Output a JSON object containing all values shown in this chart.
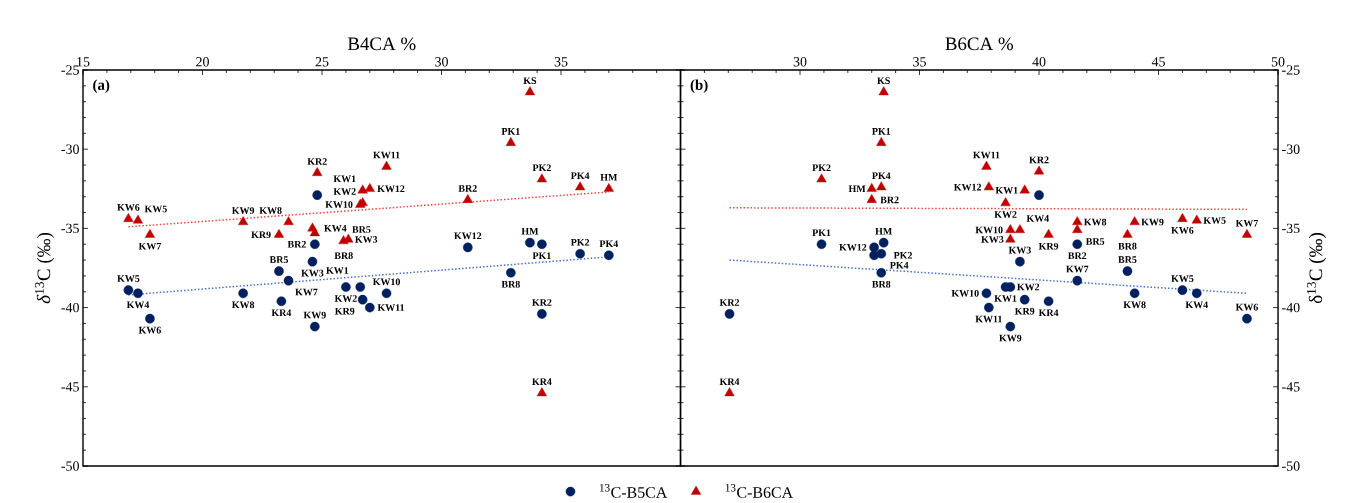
{
  "chart_data": [
    {
      "type": "scatter",
      "xlabel": "B4CA %",
      "ylabel": "*δ*$^{13}$C (‰)",
      "xlim": [
        15,
        40
      ],
      "ylim": [
        -50,
        -25
      ],
      "xticks": [
        15,
        20,
        25,
        30,
        35,
        {
          "value": 40,
          "label": null
        }
      ],
      "yticks": [
        -50,
        -45,
        -40,
        -35,
        -30,
        -25
      ],
      "legend": "bottom",
      "series": [
        {
          "name": "$^{13}$C-B5CA",
          "color": "#002060",
          "marker": "circle",
          "x": [
            16.9,
            17.3,
            17.8,
            21.7,
            23.2,
            23.6,
            23.3,
            24.8,
            24.7,
            24.6,
            24.7,
            26.0,
            26.6,
            26.7,
            27.0,
            27.7,
            31.1,
            32.9,
            33.7,
            34.2,
            35.8,
            37.0,
            34.2
          ],
          "values": [
            -38.9,
            -39.1,
            -40.7,
            -39.1,
            -37.7,
            -38.3,
            -39.6,
            -32.9,
            -36.0,
            -37.1,
            -41.2,
            -38.7,
            -38.7,
            -39.5,
            -40.0,
            -39.1,
            -36.2,
            -37.8,
            -35.9,
            -36.0,
            -36.6,
            -36.7,
            -40.4
          ]
        },
        {
          "name": "$^{13}$C-B6CA",
          "color": "#c00000",
          "marker": "triangle",
          "x": [
            16.9,
            17.3,
            17.8,
            21.7,
            23.2,
            23.6,
            24.6,
            24.7,
            24.8,
            26.1,
            25.9,
            26.6,
            26.7,
            26.7,
            27.0,
            27.7,
            31.1,
            33.7,
            32.9,
            34.2,
            35.8,
            37.0,
            34.2
          ],
          "values": [
            -34.4,
            -34.5,
            -35.4,
            -34.6,
            -35.4,
            -34.6,
            -35.0,
            -35.3,
            -31.5,
            -35.7,
            -35.8,
            -33.5,
            -33.4,
            -32.6,
            -32.5,
            -31.1,
            -33.2,
            -26.4,
            -29.6,
            -31.9,
            -32.4,
            -32.5,
            -45.4
          ]
        },
        {
          "type": "line",
          "color": "#4472c4",
          "line_style": "dotted",
          "marker": "none",
          "x": [
            16.9,
            37.0
          ],
          "values": [
            -39.2,
            -36.8
          ]
        },
        {
          "type": "line",
          "color": "#e8483c",
          "line_style": "dotted",
          "marker": "none",
          "x": [
            16.9,
            37.0
          ],
          "values": [
            -34.9,
            -32.7
          ]
        }
      ],
      "annotations": [
        "(a)",
        {
          "text": "KW5",
          "x": 16.9,
          "y": -38.9
        },
        {
          "text": "KW4",
          "x": 17.3,
          "y": -39.1
        },
        {
          "text": "KW6",
          "x": 17.8,
          "y": -40.7
        },
        {
          "text": "KW8",
          "x": 21.7,
          "y": -39.1
        },
        {
          "text": "BR5",
          "x": 23.2,
          "y": -37.7
        },
        {
          "text": "KW7",
          "x": 23.6,
          "y": -38.3
        },
        {
          "text": "KR4",
          "x": 23.3,
          "y": -39.6
        },
        {
          "text": "BR2",
          "x": 24.7,
          "y": -36.0
        },
        {
          "text": "KW3",
          "x": 24.6,
          "y": -37.1
        },
        {
          "text": "KW9",
          "x": 24.7,
          "y": -41.2
        },
        {
          "text": "KW2",
          "x": 26.0,
          "y": -38.7
        },
        {
          "text": "KW1",
          "x": 26.6,
          "y": -38.7
        },
        {
          "text": "KR9",
          "x": 26.7,
          "y": -39.5
        },
        {
          "text": "KW11",
          "x": 27.0,
          "y": -40.0
        },
        {
          "text": "KW10",
          "x": 27.7,
          "y": -39.1
        },
        {
          "text": "KW12",
          "x": 31.1,
          "y": -36.2
        },
        {
          "text": "BR8",
          "x": 32.9,
          "y": -37.8
        },
        {
          "text": "HM",
          "x": 33.7,
          "y": -35.9
        },
        {
          "text": "PK1",
          "x": 34.2,
          "y": -36.0
        },
        {
          "text": "PK2",
          "x": 35.8,
          "y": -36.6
        },
        {
          "text": "PK4",
          "x": 37.0,
          "y": -36.7
        },
        {
          "text": "KR2",
          "x": 34.2,
          "y": -40.4
        },
        {
          "text": "KW6",
          "x": 16.9,
          "y": -34.4
        },
        {
          "text": "KW5",
          "x": 17.3,
          "y": -34.5
        },
        {
          "text": "KW7",
          "x": 17.8,
          "y": -35.4
        },
        {
          "text": "KW9",
          "x": 21.7,
          "y": -34.6
        },
        {
          "text": "KR9",
          "x": 23.2,
          "y": -35.4
        },
        {
          "text": "KW8",
          "x": 23.6,
          "y": -34.6
        },
        {
          "text": "KW4",
          "x": 24.6,
          "y": -35.0
        },
        {
          "text": "BR8",
          "x": 24.7,
          "y": -35.3
        },
        {
          "text": "KR2",
          "x": 24.8,
          "y": -31.5
        },
        {
          "text": "KW3",
          "x": 26.1,
          "y": -35.7
        },
        {
          "text": "BR5",
          "x": 25.9,
          "y": -35.8
        },
        {
          "text": "KW10",
          "x": 26.6,
          "y": -33.5
        },
        {
          "text": "KW2",
          "x": 26.7,
          "y": -33.4
        },
        {
          "text": "KW1",
          "x": 26.7,
          "y": -32.6
        },
        {
          "text": "KW12",
          "x": 27.0,
          "y": -32.5
        },
        {
          "text": "KW11",
          "x": 27.7,
          "y": -31.1
        },
        {
          "text": "BR2",
          "x": 31.1,
          "y": -33.2
        },
        {
          "text": "KS",
          "x": 33.7,
          "y": -26.4
        },
        {
          "text": "PK1",
          "x": 32.9,
          "y": -29.6
        },
        {
          "text": "PK2",
          "x": 34.2,
          "y": -31.9
        },
        {
          "text": "PK4",
          "x": 35.8,
          "y": -32.4
        },
        {
          "text": "HM",
          "x": 37.0,
          "y": -32.5
        },
        {
          "text": "KR4",
          "x": 34.2,
          "y": -45.4
        }
      ]
    },
    {
      "type": "scatter",
      "xlabel": "B6CA %",
      "ylabel": "δ$^{13}$C (‰)",
      "xlim": [
        25,
        50
      ],
      "ylim": [
        -50,
        -25
      ],
      "xticks": [
        {
          "value": 25,
          "label": null
        },
        30,
        35,
        40,
        45,
        50
      ],
      "yticks": [
        -50,
        -45,
        -40,
        -35,
        -30,
        -25
      ],
      "series": [
        {
          "color": "#002060",
          "marker": "circle",
          "x": [
            27.05,
            30.9,
            33.1,
            33.5,
            33.1,
            33.4,
            33.4,
            37.8,
            37.9,
            38.6,
            38.8,
            38.8,
            39.2,
            40.0,
            39.4,
            40.4,
            41.6,
            43.7,
            44.0,
            46.0,
            46.6,
            48.7,
            41.6
          ],
          "values": [
            -40.4,
            -36.0,
            -36.2,
            -35.9,
            -36.7,
            -36.6,
            -37.8,
            -39.1,
            -40.0,
            -38.7,
            -38.7,
            -41.2,
            -37.1,
            -32.9,
            -39.5,
            -39.6,
            -38.3,
            -37.7,
            -39.1,
            -38.9,
            -39.1,
            -40.7,
            -36.0
          ]
        },
        {
          "color": "#c00000",
          "marker": "triangle",
          "x": [
            27.05,
            30.9,
            33.0,
            33.4,
            33.0,
            33.4,
            33.5,
            37.8,
            37.9,
            38.6,
            39.4,
            40.0,
            38.8,
            38.8,
            39.2,
            40.4,
            41.6,
            41.6,
            43.7,
            44.0,
            46.0,
            46.6,
            48.7
          ],
          "values": [
            -45.4,
            -31.9,
            -32.5,
            -32.4,
            -33.2,
            -29.6,
            -26.4,
            -31.1,
            -32.4,
            -33.4,
            -32.6,
            -31.4,
            -35.1,
            -35.7,
            -35.1,
            -35.4,
            -34.6,
            -35.1,
            -35.4,
            -34.6,
            -34.4,
            -34.5,
            -35.4
          ]
        },
        {
          "type": "line",
          "color": "#4472c4",
          "line_style": "dotted",
          "marker": "none",
          "x": [
            27.05,
            48.7
          ],
          "values": [
            -37.0,
            -39.1
          ]
        },
        {
          "type": "line",
          "color": "#e8483c",
          "line_style": "dotted",
          "marker": "none",
          "x": [
            27.05,
            48.7
          ],
          "values": [
            -33.7,
            -33.8
          ]
        }
      ],
      "annotations": [
        "(b)",
        {
          "text": "KR2",
          "x": 27.05,
          "y": -40.4
        },
        {
          "text": "PK1",
          "x": 30.9,
          "y": -36.0
        },
        {
          "text": "KW12",
          "x": 33.1,
          "y": -36.2
        },
        {
          "text": "HM",
          "x": 33.5,
          "y": -35.9
        },
        {
          "text": "PK2",
          "x": 33.1,
          "y": -36.7
        },
        {
          "text": "PK4",
          "x": 33.4,
          "y": -36.6
        },
        {
          "text": "BR8",
          "x": 33.4,
          "y": -37.8
        },
        {
          "text": "KW10",
          "x": 37.8,
          "y": -39.1
        },
        {
          "text": "KW11",
          "x": 37.9,
          "y": -40.0
        },
        {
          "text": "KW1",
          "x": 38.6,
          "y": -38.7
        },
        {
          "text": "KW2",
          "x": 38.8,
          "y": -38.7
        },
        {
          "text": "KW9",
          "x": 38.8,
          "y": -41.2
        },
        {
          "text": "KW3",
          "x": 39.2,
          "y": -37.1
        },
        {
          "text": "KR9",
          "x": 39.4,
          "y": -39.5
        },
        {
          "text": "KR4",
          "x": 40.4,
          "y": -39.6
        },
        {
          "text": "KW7",
          "x": 41.6,
          "y": -38.3
        },
        {
          "text": "BR5",
          "x": 43.7,
          "y": -37.7
        },
        {
          "text": "KW8",
          "x": 44.0,
          "y": -39.1
        },
        {
          "text": "KW5",
          "x": 46.0,
          "y": -38.9
        },
        {
          "text": "KW4",
          "x": 46.6,
          "y": -39.1
        },
        {
          "text": "KW6",
          "x": 48.7,
          "y": -40.7
        },
        {
          "text": "BR2",
          "x": 41.6,
          "y": -36.0
        },
        {
          "text": "KR4",
          "x": 27.05,
          "y": -45.4
        },
        {
          "text": "PK2",
          "x": 30.9,
          "y": -31.9
        },
        {
          "text": "HM",
          "x": 33.0,
          "y": -32.5
        },
        {
          "text": "PK4",
          "x": 33.4,
          "y": -32.4
        },
        {
          "text": "BR2",
          "x": 33.0,
          "y": -33.2
        },
        {
          "text": "PK1",
          "x": 33.4,
          "y": -29.6
        },
        {
          "text": "KS",
          "x": 33.5,
          "y": -26.4
        },
        {
          "text": "KW11",
          "x": 37.8,
          "y": -31.1
        },
        {
          "text": "KW12",
          "x": 37.9,
          "y": -32.4
        },
        {
          "text": "KW2",
          "x": 38.6,
          "y": -33.4
        },
        {
          "text": "KW1",
          "x": 39.4,
          "y": -32.6
        },
        {
          "text": "KR2",
          "x": 40.0,
          "y": -31.4
        },
        {
          "text": "KW10",
          "x": 38.8,
          "y": -35.1
        },
        {
          "text": "KW3",
          "x": 38.8,
          "y": -35.7
        },
        {
          "text": "KW4",
          "x": 39.2,
          "y": -35.1
        },
        {
          "text": "KR9",
          "x": 40.4,
          "y": -35.4
        },
        {
          "text": "KW8",
          "x": 41.6,
          "y": -34.6
        },
        {
          "text": "BR5",
          "x": 41.6,
          "y": -35.1
        },
        {
          "text": "BR8",
          "x": 43.7,
          "y": -35.4
        },
        {
          "text": "KW9",
          "x": 44.0,
          "y": -34.6
        },
        {
          "text": "KW6",
          "x": 46.0,
          "y": -34.4
        },
        {
          "text": "KW5",
          "x": 46.6,
          "y": -34.5
        },
        {
          "text": "KW7",
          "x": 48.7,
          "y": -35.4
        }
      ]
    }
  ]
}
